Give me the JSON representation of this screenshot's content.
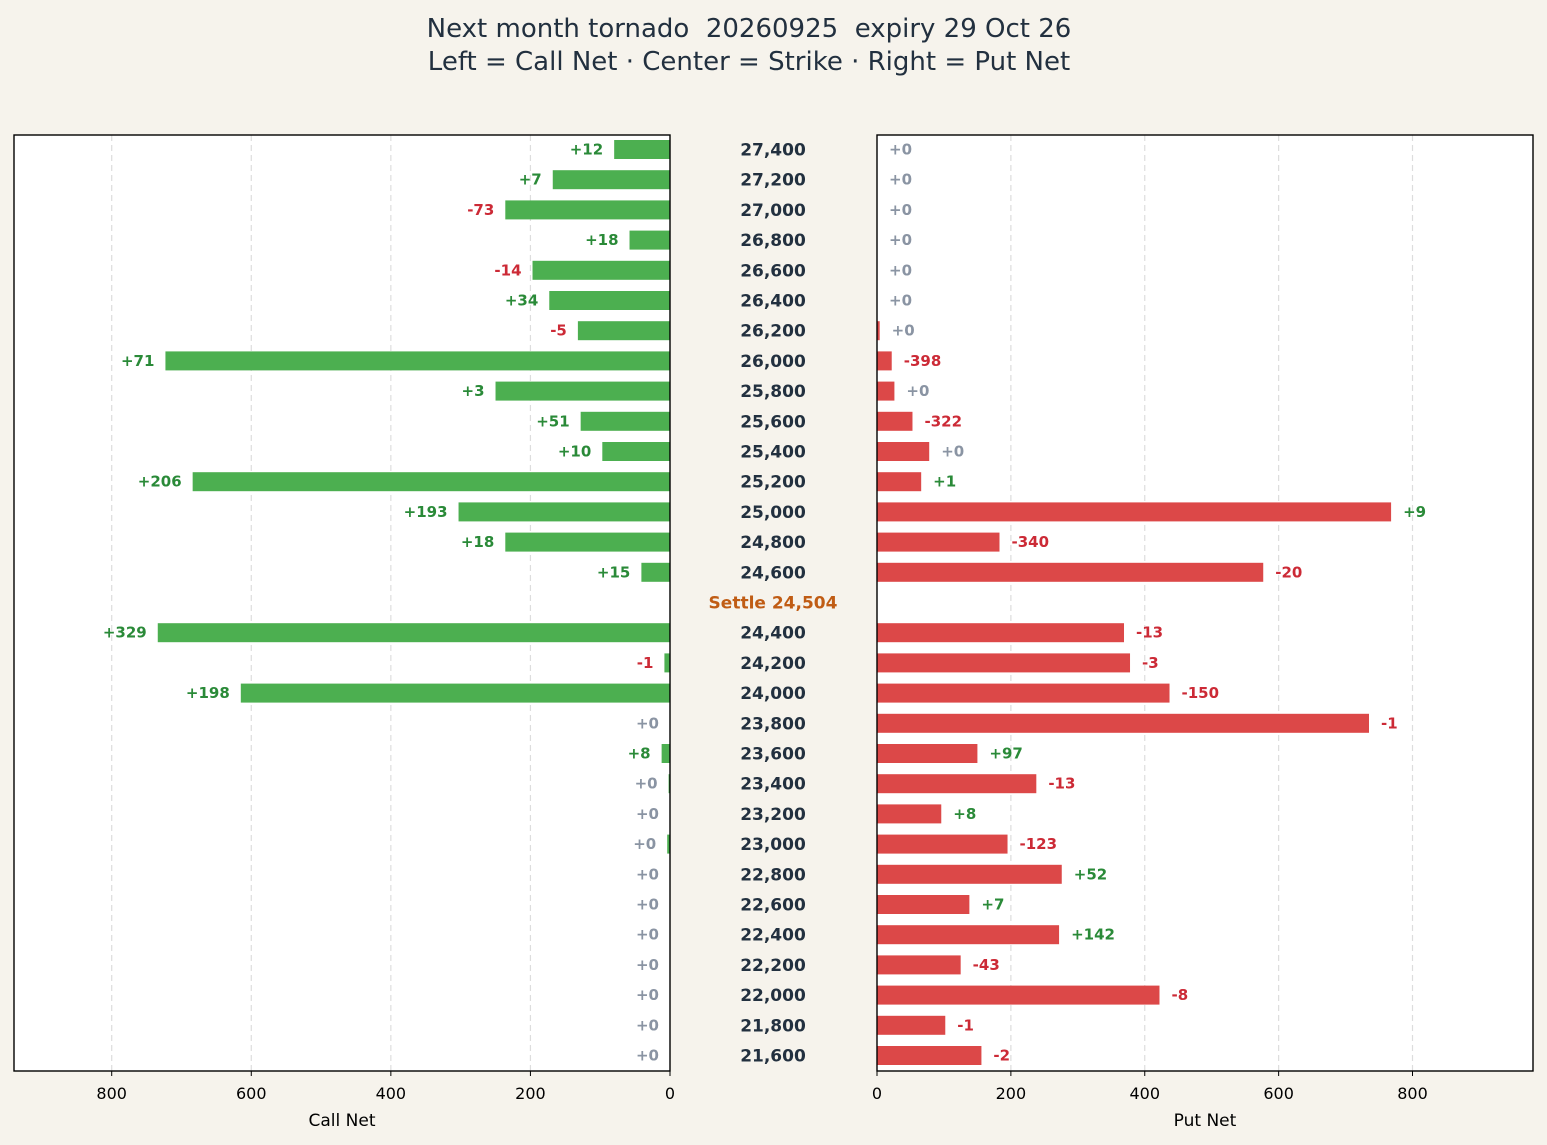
{
  "title_line1": "Next month tornado  20260925  expiry 29 Oct 26",
  "title_line2": "Left = Call Net · Center = Strike · Right = Put Net",
  "colors": {
    "call_bar": "#4caf50",
    "put_bar": "#dc4848",
    "positive_label": "#2a8a38",
    "negative_label": "#cc2a36",
    "zero_label": "#8a94a3",
    "settle": "#c05c14",
    "strike_text": "#22303f",
    "background": "#f6f3ec",
    "plot_background": "#ffffff",
    "grid": "#dddddd"
  },
  "chart_data": {
    "type": "bar",
    "orientation": "horizontal",
    "layout": "tornado",
    "grid": true,
    "left": {
      "xlabel": "Call Net",
      "xlim": [
        940,
        0
      ],
      "ticks": [
        "800",
        "600",
        "400",
        "200",
        "0"
      ]
    },
    "right": {
      "xlabel": "Put Net",
      "xlim": [
        0,
        980
      ],
      "ticks": [
        "0",
        "200",
        "400",
        "600",
        "800"
      ]
    },
    "settle_label": "Settle 24,504",
    "settle_after_strike": "24,600",
    "rows": [
      {
        "strike": "27,400",
        "call": 80,
        "call_change": "+12",
        "put": 0,
        "put_change": "+0"
      },
      {
        "strike": "27,200",
        "call": 168,
        "call_change": "+7",
        "put": 0,
        "put_change": "+0"
      },
      {
        "strike": "27,000",
        "call": 236,
        "call_change": "-73",
        "put": 0,
        "put_change": "+0"
      },
      {
        "strike": "26,800",
        "call": 58,
        "call_change": "+18",
        "put": 0,
        "put_change": "+0"
      },
      {
        "strike": "26,600",
        "call": 197,
        "call_change": "-14",
        "put": 0,
        "put_change": "+0"
      },
      {
        "strike": "26,400",
        "call": 173,
        "call_change": "+34",
        "put": 0,
        "put_change": "+0"
      },
      {
        "strike": "26,200",
        "call": 132,
        "call_change": "-5",
        "put": 4,
        "put_change": "+0"
      },
      {
        "strike": "26,000",
        "call": 723,
        "call_change": "+71",
        "put": 22,
        "put_change": "-398"
      },
      {
        "strike": "25,800",
        "call": 250,
        "call_change": "+3",
        "put": 26,
        "put_change": "+0"
      },
      {
        "strike": "25,600",
        "call": 128,
        "call_change": "+51",
        "put": 53,
        "put_change": "-322"
      },
      {
        "strike": "25,400",
        "call": 97,
        "call_change": "+10",
        "put": 78,
        "put_change": "+0"
      },
      {
        "strike": "25,200",
        "call": 684,
        "call_change": "+206",
        "put": 66,
        "put_change": "+1"
      },
      {
        "strike": "25,000",
        "call": 303,
        "call_change": "+193",
        "put": 768,
        "put_change": "+9"
      },
      {
        "strike": "24,800",
        "call": 236,
        "call_change": "+18",
        "put": 183,
        "put_change": "-340"
      },
      {
        "strike": "24,600",
        "call": 41,
        "call_change": "+15",
        "put": 577,
        "put_change": "-20"
      },
      {
        "strike": "24,400",
        "call": 734,
        "call_change": "+329",
        "put": 369,
        "put_change": "-13"
      },
      {
        "strike": "24,200",
        "call": 8,
        "call_change": "-1",
        "put": 378,
        "put_change": "-3"
      },
      {
        "strike": "24,000",
        "call": 615,
        "call_change": "+198",
        "put": 437,
        "put_change": "-150"
      },
      {
        "strike": "23,800",
        "call": 0,
        "call_change": "+0",
        "put": 735,
        "put_change": "-1"
      },
      {
        "strike": "23,600",
        "call": 12,
        "call_change": "+8",
        "put": 150,
        "put_change": "+97"
      },
      {
        "strike": "23,400",
        "call": 2,
        "call_change": "+0",
        "put": 238,
        "put_change": "-13"
      },
      {
        "strike": "23,200",
        "call": 0,
        "call_change": "+0",
        "put": 96,
        "put_change": "+8"
      },
      {
        "strike": "23,000",
        "call": 4,
        "call_change": "+0",
        "put": 195,
        "put_change": "-123"
      },
      {
        "strike": "22,800",
        "call": 0,
        "call_change": "+0",
        "put": 276,
        "put_change": "+52"
      },
      {
        "strike": "22,600",
        "call": 0,
        "call_change": "+0",
        "put": 138,
        "put_change": "+7"
      },
      {
        "strike": "22,400",
        "call": 0,
        "call_change": "+0",
        "put": 272,
        "put_change": "+142"
      },
      {
        "strike": "22,200",
        "call": 0,
        "call_change": "+0",
        "put": 125,
        "put_change": "-43"
      },
      {
        "strike": "22,000",
        "call": 0,
        "call_change": "+0",
        "put": 422,
        "put_change": "-8"
      },
      {
        "strike": "21,800",
        "call": 0,
        "call_change": "+0",
        "put": 102,
        "put_change": "-1"
      },
      {
        "strike": "21,600",
        "call": 0,
        "call_change": "+0",
        "put": 156,
        "put_change": "-2"
      }
    ]
  }
}
